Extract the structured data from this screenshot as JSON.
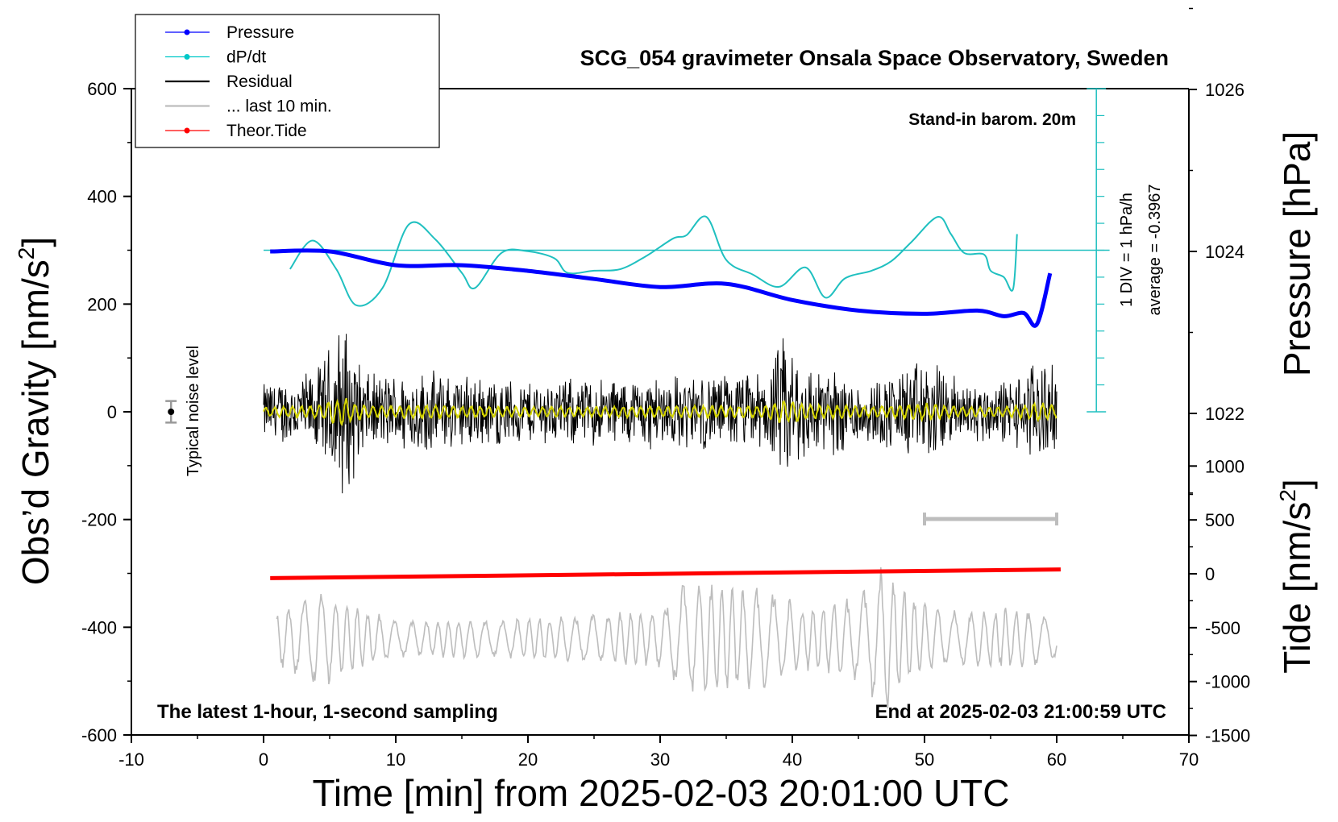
{
  "chart_data": {
    "type": "line",
    "title": "SCG_054 gravimeter Onsala Space Observatory, Sweden",
    "xlabel": "Time [min] from 2025-02-03 20:01:00 UTC",
    "ylabel_left": "Obs’d Gravity [nm/s²]",
    "ylabel_left_main": "Obs’d Gravity [nm/s",
    "ylabel_left_sup": "2",
    "ylabel_left_end": "]",
    "ylabel_right_pressure": "Pressure [hPa]",
    "ylabel_right_tide": "Tide [nm/s²]",
    "ylabel_right_tide_main": "Tide [nm/s",
    "ylabel_right_tide_sup": "2",
    "ylabel_right_tide_end": "]",
    "xlim": [
      -10,
      70
    ],
    "ylim_left": [
      -600,
      600
    ],
    "xticks": [
      -10,
      0,
      10,
      20,
      30,
      40,
      50,
      60,
      70
    ],
    "yticks_left": [
      -600,
      -400,
      -200,
      0,
      200,
      400,
      600
    ],
    "pressure_ticks": [
      1022,
      1024,
      1026
    ],
    "tide_ticks": [
      -1500,
      -1000,
      -500,
      0,
      500,
      1000
    ],
    "legend": {
      "position": "top-left",
      "entries": [
        {
          "label": "Pressure",
          "color": "#0000ff",
          "marker": true
        },
        {
          "label": "dP/dt",
          "color": "#00c8c8",
          "marker": true
        },
        {
          "label": "Residual",
          "color": "#000000",
          "marker": false
        },
        {
          "label": "... last 10 min.",
          "color": "#bdbdbd",
          "marker": false
        },
        {
          "label": "Theor.Tide",
          "color": "#ff0000",
          "marker": true
        }
      ]
    },
    "annotations": {
      "barometer": "Stand-in barom. 20m",
      "div_label": "1 DIV = 1 hPa/h",
      "average_label": "average = -0.3967",
      "noise_label": "Typical noise level",
      "footer_left": "The latest 1-hour, 1-second sampling",
      "footer_right": "End at 2025-02-03 21:00:59 UTC"
    },
    "colors": {
      "pressure": "#0000ff",
      "dpdt": "#20c0c0",
      "residual": "#000000",
      "smoothed": "#d4d400",
      "last10": "#bdbdbd",
      "tide": "#ff0000"
    },
    "series": [
      {
        "name": "Pressure",
        "axis": "pressure_hPa",
        "x": [
          0.5,
          5,
          10,
          15,
          20,
          25,
          30,
          35,
          40,
          45,
          50,
          54,
          56,
          57.5,
          58.5,
          59.5
        ],
        "values": [
          1024.0,
          1024.0,
          1023.83,
          1023.83,
          1023.76,
          1023.66,
          1023.56,
          1023.6,
          1023.4,
          1023.27,
          1023.23,
          1023.27,
          1023.2,
          1023.24,
          1023.1,
          1023.73
        ]
      },
      {
        "name": "dP/dt",
        "axis": "gravity_scaled",
        "x": [
          2,
          3.7,
          5.5,
          7,
          9,
          11,
          13,
          15,
          16,
          18,
          20,
          22,
          23,
          25,
          27,
          29,
          31,
          32,
          33.5,
          35,
          37,
          39,
          41,
          42.5,
          44,
          46,
          47.5,
          49,
          51,
          52,
          53,
          54.5,
          55,
          56,
          56.7,
          57
        ],
        "values": [
          265,
          318,
          265,
          198,
          230,
          348,
          320,
          258,
          230,
          295,
          298,
          285,
          258,
          262,
          265,
          290,
          322,
          328,
          362,
          282,
          255,
          232,
          268,
          212,
          248,
          262,
          280,
          315,
          362,
          330,
          295,
          292,
          262,
          250,
          228,
          330
        ]
      },
      {
        "name": "Residual",
        "axis": "gravity_nm_s2",
        "x_range": [
          0,
          60
        ],
        "envelope_x": [
          0,
          4,
          5.5,
          6,
          6.5,
          8,
          12,
          20,
          30,
          38,
          39.5,
          41,
          46,
          50,
          53,
          56,
          58,
          58.6,
          60
        ],
        "envelope_amp": [
          60,
          85,
          160,
          205,
          150,
          75,
          85,
          65,
          75,
          80,
          160,
          105,
          65,
          110,
          65,
          65,
          95,
          135,
          75
        ]
      },
      {
        "name": "... last 10 min.",
        "axis": "tide_nm_s2",
        "x_range": [
          1,
          60
        ],
        "baseline": -600,
        "envelope_x": [
          1,
          4,
          10,
          20,
          30,
          32,
          38,
          41,
          45,
          47,
          49,
          52,
          57,
          60
        ],
        "envelope_amp": [
          260,
          500,
          180,
          200,
          280,
          580,
          480,
          300,
          400,
          730,
          420,
          260,
          300,
          230
        ]
      },
      {
        "name": "Theor.Tide",
        "axis": "tide_nm_s2",
        "x": [
          0.5,
          60.3
        ],
        "values": [
          -40,
          40
        ]
      }
    ],
    "last10_span_min": [
      50,
      60
    ],
    "noise_bar": {
      "x": -7,
      "center": 0,
      "halfwidth": 20
    }
  }
}
